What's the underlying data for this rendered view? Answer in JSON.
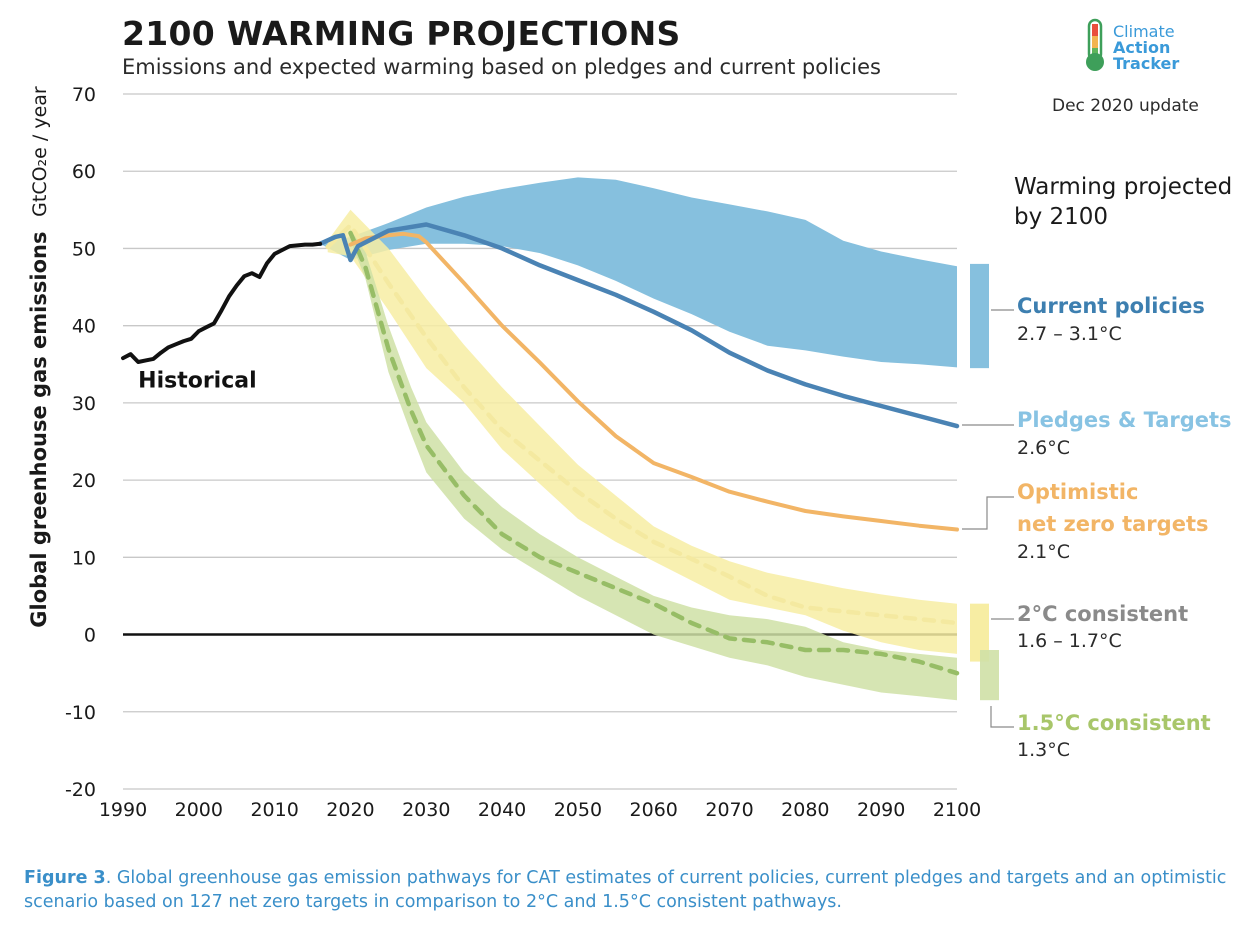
{
  "header": {
    "title": "2100 WARMING PROJECTIONS",
    "subtitle": "Emissions and expected warming based on pledges and current policies"
  },
  "logo": {
    "line1": "Climate",
    "line2": "Action",
    "line3": "Tracker"
  },
  "update_label": "Dec 2020 update",
  "warming_heading": {
    "line1": "Warming projected",
    "line2": "by 2100"
  },
  "scenarios": {
    "current_policies": {
      "label": "Current policies",
      "range": "2.7 – 3.1°C"
    },
    "pledges": {
      "label": "Pledges & Targets",
      "range": "2.6°C"
    },
    "optimistic": {
      "label1": "Optimistic",
      "label2": "net zero targets",
      "range": "2.1°C"
    },
    "two_c": {
      "label": "2°C consistent",
      "range": "1.6 – 1.7°C"
    },
    "one_five_c": {
      "label": "1.5°C consistent",
      "range": "1.3°C"
    }
  },
  "caption": {
    "prefix": "Figure 3",
    "text": ". Global greenhouse gas emission pathways for CAT estimates of current policies, current pledges and targets and an optimistic scenario based on 127 net zero targets in comparison to 2°C and 1.5°C consistent pathways."
  },
  "colors": {
    "historical": "#111111",
    "current_policies_band": "#86c0de",
    "current_policies_text": "#3d7fb0",
    "pledges_line": "#4a83b4",
    "pledges_text": "#88c3e3",
    "optimistic": "#f2b566",
    "two_c_band": "#f7eda3",
    "two_c_line": "#f4e9a0",
    "two_c_text": "#8a8a8a",
    "one_five_band": "#cfe0a6",
    "one_five_line": "#97bd66",
    "one_five_text": "#a8c66a",
    "grid": "#c8c8c8"
  },
  "chart_data": {
    "type": "line",
    "title": "2100 WARMING PROJECTIONS",
    "ylabel": "Global greenhouse gas emissions",
    "ylabel_unit": "GtCO₂e / year",
    "xlim": [
      1990,
      2100
    ],
    "ylim": [
      -20,
      70
    ],
    "xticks": [
      1990,
      2000,
      2010,
      2020,
      2030,
      2040,
      2050,
      2060,
      2070,
      2080,
      2090,
      2100
    ],
    "yticks": [
      -20,
      -10,
      0,
      10,
      20,
      30,
      40,
      50,
      60,
      70
    ],
    "annotations": [
      {
        "text": "Historical",
        "x": 1992,
        "y": 32
      }
    ],
    "series": [
      {
        "name": "Historical",
        "kind": "line",
        "x": [
          1990,
          1991,
          1992,
          1993,
          1994,
          1995,
          1996,
          1997,
          1998,
          1999,
          2000,
          2001,
          2002,
          2003,
          2004,
          2005,
          2006,
          2007,
          2008,
          2009,
          2010,
          2011,
          2012,
          2013,
          2014,
          2015,
          2016
        ],
        "y": [
          35.8,
          36.3,
          35.3,
          35.5,
          35.7,
          36.5,
          37.2,
          37.6,
          38.0,
          38.3,
          39.3,
          39.8,
          40.3,
          42.0,
          43.8,
          45.2,
          46.4,
          46.8,
          46.3,
          48.1,
          49.3,
          49.8,
          50.3,
          50.4,
          50.5,
          50.5,
          50.6
        ]
      },
      {
        "name": "Current policies",
        "kind": "band",
        "x": [
          2016,
          2020,
          2025,
          2030,
          2035,
          2040,
          2045,
          2050,
          2055,
          2060,
          2065,
          2070,
          2075,
          2080,
          2085,
          2090,
          2095,
          2100
        ],
        "upper": [
          50.6,
          51.5,
          53.3,
          55.3,
          56.7,
          57.7,
          58.5,
          59.2,
          58.9,
          57.8,
          56.6,
          55.7,
          54.8,
          53.7,
          51.0,
          49.6,
          48.6,
          47.7
        ],
        "lower": [
          50.6,
          48.5,
          49.8,
          50.6,
          50.6,
          50.3,
          49.4,
          47.8,
          45.8,
          43.5,
          41.5,
          39.2,
          37.4,
          36.8,
          36.0,
          35.3,
          35.0,
          34.6
        ]
      },
      {
        "name": "Pledges & Targets",
        "kind": "line",
        "x": [
          2016,
          2018,
          2019,
          2020,
          2021,
          2025,
          2030,
          2035,
          2040,
          2045,
          2050,
          2055,
          2060,
          2065,
          2070,
          2075,
          2080,
          2085,
          2090,
          2095,
          2100
        ],
        "y": [
          50.6,
          51.5,
          51.7,
          48.5,
          50.3,
          52.3,
          53.1,
          51.7,
          50.0,
          47.8,
          45.9,
          44.0,
          41.8,
          39.4,
          36.5,
          34.2,
          32.4,
          30.9,
          29.6,
          28.3,
          27.0
        ]
      },
      {
        "name": "Optimistic net zero targets",
        "kind": "line",
        "x": [
          2020,
          2022,
          2025,
          2027,
          2029,
          2030,
          2035,
          2040,
          2045,
          2050,
          2055,
          2060,
          2065,
          2070,
          2075,
          2080,
          2085,
          2090,
          2095,
          2100
        ],
        "y": [
          50.5,
          51.3,
          51.7,
          51.9,
          51.6,
          50.8,
          45.5,
          40.0,
          35.2,
          30.2,
          25.7,
          22.2,
          20.4,
          18.5,
          17.2,
          16.0,
          15.3,
          14.7,
          14.1,
          13.6
        ]
      },
      {
        "name": "2°C consistent",
        "kind": "band_with_median",
        "x": [
          2017,
          2020,
          2025,
          2030,
          2035,
          2040,
          2045,
          2050,
          2055,
          2060,
          2065,
          2070,
          2075,
          2080,
          2085,
          2090,
          2095,
          2100
        ],
        "upper": [
          51.0,
          55.0,
          50.0,
          43.5,
          37.5,
          32.0,
          27.0,
          22.0,
          18.0,
          14.0,
          11.5,
          9.5,
          8.0,
          7.0,
          6.0,
          5.2,
          4.5,
          4.0
        ],
        "lower": [
          49.5,
          49.0,
          42.0,
          34.5,
          30.0,
          24.0,
          19.5,
          15.0,
          12.0,
          9.5,
          7.0,
          4.5,
          3.5,
          2.5,
          0.5,
          -1.0,
          -2.0,
          -2.5
        ],
        "median": [
          50.2,
          53.0,
          45.5,
          38.5,
          32.0,
          26.5,
          22.5,
          18.5,
          15.0,
          12.0,
          9.8,
          7.5,
          5.0,
          3.5,
          3.0,
          2.5,
          2.0,
          1.5
        ]
      },
      {
        "name": "1.5°C consistent",
        "kind": "band_with_median",
        "x": [
          2020,
          2022,
          2025,
          2028,
          2030,
          2035,
          2040,
          2045,
          2050,
          2055,
          2060,
          2065,
          2070,
          2075,
          2080,
          2085,
          2090,
          2095,
          2100
        ],
        "upper": [
          52.5,
          49.5,
          40.0,
          32.0,
          27.5,
          21.0,
          16.5,
          13.0,
          10.0,
          7.5,
          5.0,
          3.5,
          2.5,
          2.0,
          1.0,
          -1.0,
          -2.0,
          -2.5,
          -3.0
        ],
        "lower": [
          51.0,
          46.0,
          34.0,
          26.0,
          21.0,
          15.0,
          11.0,
          8.0,
          5.0,
          2.5,
          0.0,
          -1.5,
          -3.0,
          -4.0,
          -5.5,
          -6.5,
          -7.5,
          -8.0,
          -8.5
        ],
        "median": [
          52.0,
          47.5,
          37.0,
          29.0,
          24.5,
          18.0,
          13.0,
          10.0,
          8.0,
          6.0,
          4.0,
          1.5,
          -0.5,
          -1.0,
          -2.0,
          -2.0,
          -2.5,
          -3.5,
          -5.0
        ]
      }
    ],
    "warming_bars": [
      {
        "name": "Current policies",
        "top": 48,
        "bottom": 34.5
      },
      {
        "name": "2°C consistent",
        "top": 4,
        "bottom": -3.5
      },
      {
        "name": "1.5°C consistent",
        "top": -2,
        "bottom": -8.5
      }
    ]
  }
}
